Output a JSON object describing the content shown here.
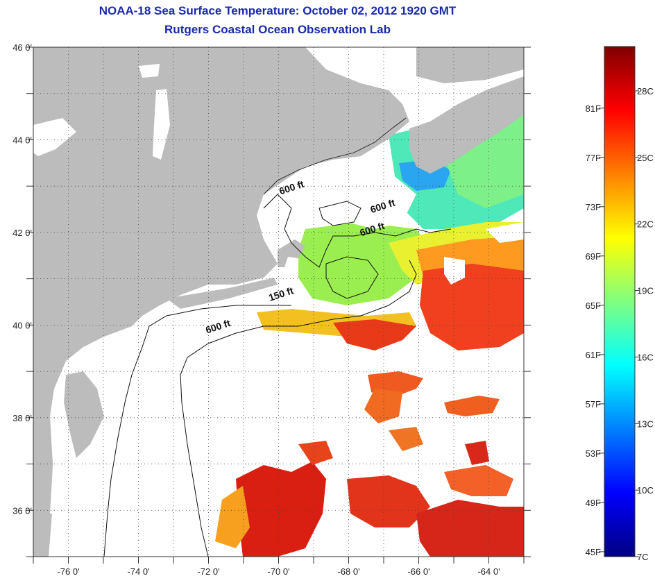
{
  "header": {
    "title": "NOAA-18 Sea Surface Temperature:  October 02, 2012 1920 GMT",
    "subtitle": "Rutgers Coastal Ocean Observation Lab"
  },
  "map": {
    "lon_range": [
      -77,
      -63
    ],
    "lat_range": [
      35,
      46
    ],
    "lon_ticks": [
      {
        "value": -76,
        "label": "-76 0'"
      },
      {
        "value": -74,
        "label": "-74 0'"
      },
      {
        "value": -72,
        "label": "-72 0'"
      },
      {
        "value": -70,
        "label": "-70 0'"
      },
      {
        "value": -68,
        "label": "-68 0'"
      },
      {
        "value": -66,
        "label": "-66 0'"
      },
      {
        "value": -64,
        "label": "-64 0'"
      }
    ],
    "lat_ticks": [
      {
        "value": 46,
        "label": "46 0'"
      },
      {
        "value": 44,
        "label": "44 0'"
      },
      {
        "value": 42,
        "label": "42 0'"
      },
      {
        "value": 40,
        "label": "40 0'"
      },
      {
        "value": 38,
        "label": "38 0'"
      },
      {
        "value": 36,
        "label": "36 0'"
      }
    ],
    "grid": "dotted",
    "land_color": "#bcbcbc",
    "ocean_color": "#ffffff",
    "contour_labels": [
      {
        "text": "600 ft",
        "lon": -69.6,
        "lat": 42.9
      },
      {
        "text": "600 ft",
        "lon": -67.0,
        "lat": 42.5
      },
      {
        "text": "600 ft",
        "lon": -67.3,
        "lat": 42.0
      },
      {
        "text": "150 ft",
        "lon": -69.9,
        "lat": 40.6
      },
      {
        "text": "600 ft",
        "lon": -71.7,
        "lat": 39.9
      }
    ]
  },
  "colorbar": {
    "range_c": [
      7,
      30
    ],
    "colors": [
      "#000080",
      "#0000ff",
      "#0080ff",
      "#00ffff",
      "#80ff80",
      "#ffff00",
      "#ff8000",
      "#ff0000",
      "#800000"
    ],
    "labels_f": [
      "81F",
      "77F",
      "73F",
      "69F",
      "65F",
      "61F",
      "57F",
      "53F",
      "49F",
      "45F"
    ],
    "labels_c": [
      "28C",
      "25C",
      "22C",
      "19C",
      "16C",
      "13C",
      "10C",
      "7C"
    ]
  }
}
